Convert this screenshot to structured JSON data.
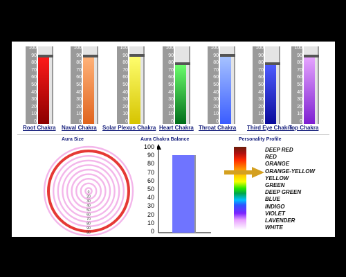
{
  "colors": {
    "background": "#000000",
    "panel": "#ffffff",
    "label": "#1a237e",
    "scale": "#9a9a9a"
  },
  "gauge_scale": [
    "100",
    "90",
    "80",
    "70",
    "60",
    "50",
    "40",
    "30",
    "20",
    "10",
    "0"
  ],
  "chakras": [
    {
      "label": "Root Chakra",
      "value": 92,
      "top": "#ff1a1a",
      "bottom": "#8b0000"
    },
    {
      "label": "Naval Chakra",
      "value": 92,
      "top": "#ffb37a",
      "bottom": "#e0641e"
    },
    {
      "label": "Solar Plexus Chakra",
      "value": 93,
      "top": "#ffff70",
      "bottom": "#d6c400"
    },
    {
      "label": "Heart Chakra",
      "value": 82,
      "top": "#6dff6d",
      "bottom": "#006d1a"
    },
    {
      "label": "Throat Chakra",
      "value": 93,
      "top": "#a8c4ff",
      "bottom": "#3a5cff"
    },
    {
      "label": "Third Eye Chakra",
      "value": 82,
      "top": "#4f5dff",
      "bottom": "#0a0a9a"
    },
    {
      "label": "Top Chakra",
      "value": 92,
      "top": "#e7a6ff",
      "bottom": "#7d1fd1"
    }
  ],
  "aura_size": {
    "title": "Aura Size",
    "scale": [
      "0",
      "20",
      "30",
      "40",
      "50",
      "60",
      "70",
      "80",
      "90",
      "80"
    ],
    "highlight_ring": 9
  },
  "balance": {
    "title": "Aura Chakra Balance",
    "scale": [
      "100",
      "90",
      "80",
      "70",
      "60",
      "50",
      "40",
      "30",
      "20",
      "10",
      "0"
    ],
    "value": 92,
    "bar_color": "#6f74ff"
  },
  "profile": {
    "title": "Personality Profile",
    "items": [
      "DEEP RED",
      "RED",
      "ORANGE",
      "ORANGE-YELLOW",
      "YELLOW",
      "GREEN",
      "DEEP GREEN",
      "BLUE",
      "INDIGO",
      "VIOLET",
      "LAVENDER",
      "WHITE"
    ],
    "pointer_at": "ORANGE-YELLOW",
    "arrow_color": "#d4a020"
  }
}
